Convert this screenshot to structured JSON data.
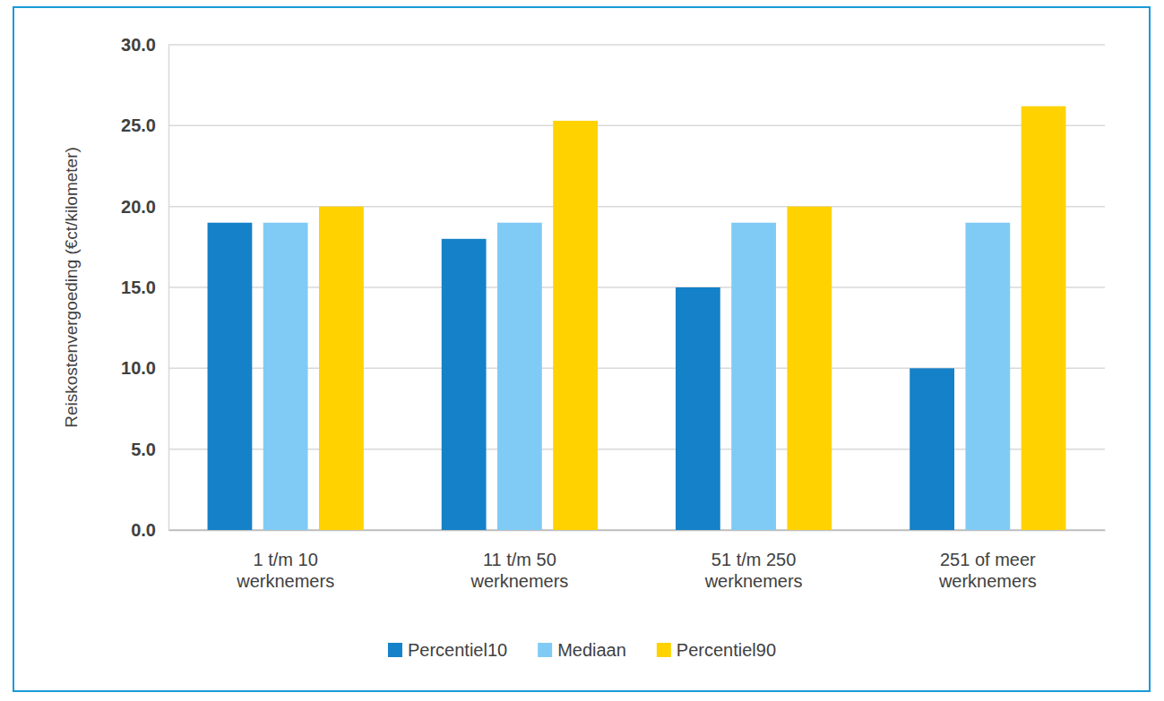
{
  "chart_data": {
    "type": "bar",
    "y_label": "Reiskostenvergoeding (€ct/kilometer)",
    "categories": [
      "1 t/m 10 werknemers",
      "11 t/m 50 werknemers",
      "51 t/m 250 werknemers",
      "251 of meer werknemers"
    ],
    "series": [
      {
        "name": "Percentiel10",
        "color": "#1581c8",
        "values": [
          19,
          18,
          15,
          10
        ]
      },
      {
        "name": "Mediaan",
        "color": "#80cbf5",
        "values": [
          19,
          19,
          19,
          19
        ]
      },
      {
        "name": "Percentiel90",
        "color": "#ffd200",
        "values": [
          20,
          25.3,
          20,
          26.2
        ]
      }
    ],
    "ylim": [
      0,
      30
    ],
    "yticks": [
      {
        "value": 0,
        "label": "0.0"
      },
      {
        "value": 5,
        "label": "5.0"
      },
      {
        "value": 10,
        "label": "10.0"
      },
      {
        "value": 15,
        "label": "15.0"
      },
      {
        "value": 20,
        "label": "20.0"
      },
      {
        "value": 25,
        "label": "25.0"
      },
      {
        "value": 30,
        "label": "30.0"
      }
    ],
    "grid": true,
    "legend": "bottom"
  }
}
